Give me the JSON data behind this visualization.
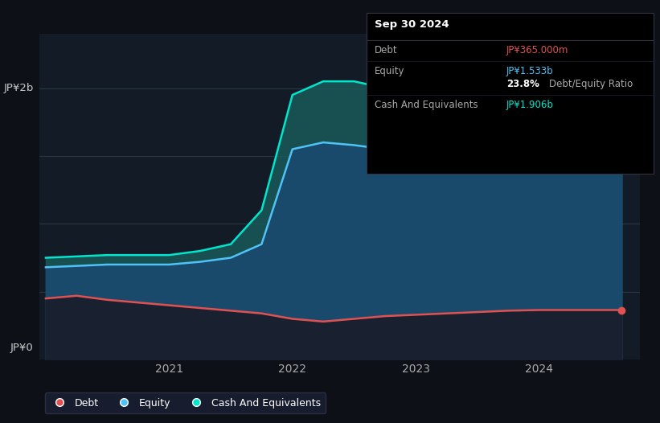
{
  "background_color": "#0d1117",
  "chart_bg": "#131b27",
  "plot_bg": "#131b27",
  "title": "Sep 30 2024",
  "ylabel_2b": "JP¥2b",
  "ylabel_0": "JP¥0",
  "tooltip": {
    "date": "Sep 30 2024",
    "debt_label": "Debt",
    "debt_value": "JP¥365.000m",
    "equity_label": "Equity",
    "equity_value": "JP¥1.533b",
    "ratio_pct": "23.8%",
    "ratio_label": "Debt/Equity Ratio",
    "cash_label": "Cash And Equivalents",
    "cash_value": "JP¥1.906b"
  },
  "debt_color": "#e05252",
  "equity_color": "#4fc3f7",
  "cash_color": "#00e5cc",
  "fill_equity_color": "#1a4a6e",
  "fill_cash_color": "#1a5a5a",
  "grid_color": "#2a3a4a",
  "legend_labels": [
    "Debt",
    "Equity",
    "Cash And Equivalents"
  ],
  "x_ticks": [
    2021,
    2022,
    2023,
    2024
  ],
  "ylim": [
    0,
    2.4
  ],
  "years": [
    2020.0,
    2020.25,
    2020.5,
    2020.75,
    2021.0,
    2021.25,
    2021.5,
    2021.75,
    2022.0,
    2022.25,
    2022.5,
    2022.75,
    2023.0,
    2023.25,
    2023.5,
    2023.75,
    2024.0,
    2024.25,
    2024.5,
    2024.67
  ],
  "debt": [
    0.45,
    0.47,
    0.44,
    0.42,
    0.4,
    0.38,
    0.36,
    0.34,
    0.3,
    0.28,
    0.3,
    0.32,
    0.33,
    0.34,
    0.35,
    0.36,
    0.365,
    0.365,
    0.365,
    0.365
  ],
  "equity": [
    0.68,
    0.69,
    0.7,
    0.7,
    0.7,
    0.72,
    0.75,
    0.85,
    1.55,
    1.6,
    1.58,
    1.55,
    1.5,
    1.5,
    1.52,
    1.52,
    1.533,
    1.533,
    1.533,
    1.533
  ],
  "cash": [
    0.75,
    0.76,
    0.77,
    0.77,
    0.77,
    0.8,
    0.85,
    1.1,
    1.95,
    2.05,
    2.05,
    2.0,
    1.92,
    1.88,
    1.85,
    1.88,
    1.906,
    1.906,
    1.906,
    1.906
  ]
}
